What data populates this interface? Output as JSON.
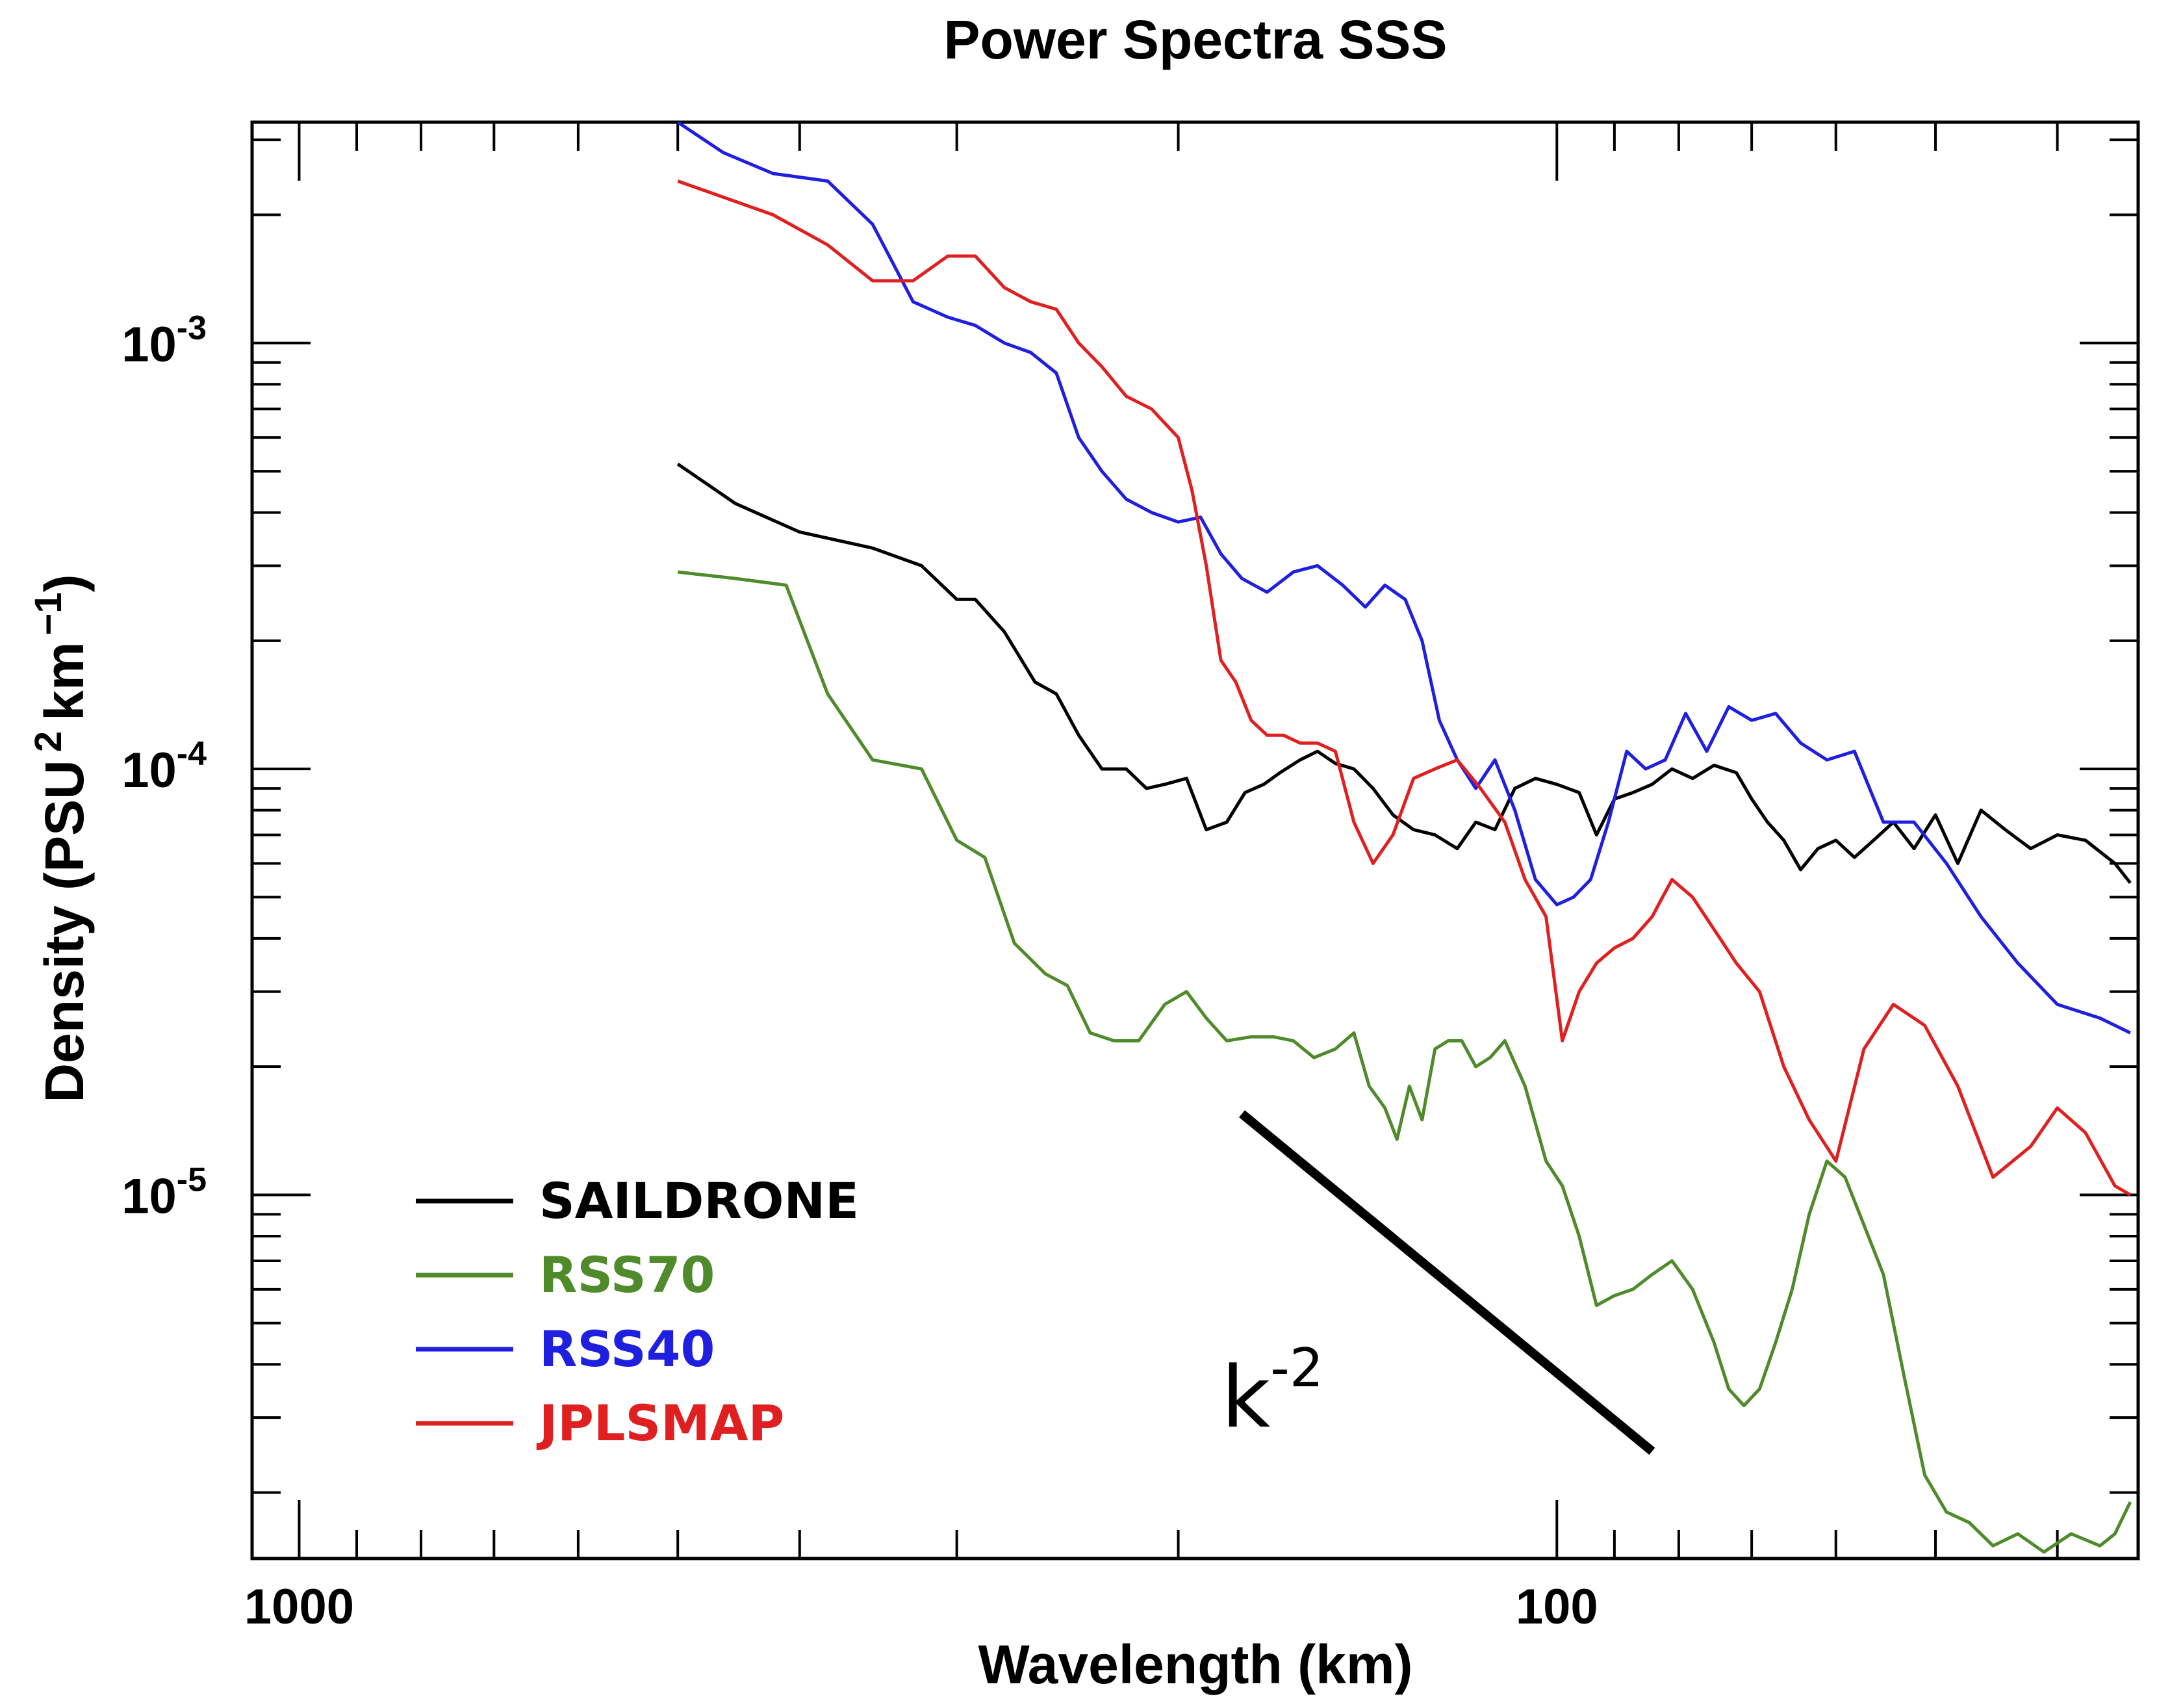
{
  "chart_data": {
    "type": "line",
    "title": "Power Spectra SSS",
    "xlabel": "Wavelength (km)",
    "ylabel": "Density (PSU",
    "ylabel_unit_a": "2",
    "ylabel_unit_b": "km",
    "ylabel_unit_c": "−1",
    "ylabel_close": ")",
    "x_scale": "log",
    "x_reversed": true,
    "y_scale": "log",
    "xlim": [
      1090,
      34.5
    ],
    "ylim": [
      1.4e-06,
      0.0033
    ],
    "x_ticks": [
      {
        "value": 1000,
        "label": "1000"
      },
      {
        "value": 100,
        "label": "100"
      }
    ],
    "y_ticks": [
      {
        "value": 1e-05,
        "base": "10",
        "exp": "-5"
      },
      {
        "value": 0.0001,
        "base": "10",
        "exp": "-4"
      },
      {
        "value": 0.001,
        "base": "10",
        "exp": "-3"
      }
    ],
    "legend_position": "bottom-left",
    "series": [
      {
        "name": "SAILDRONE",
        "color": "#000000",
        "x": [
          500,
          450,
          400,
          350,
          320,
          300,
          290,
          275,
          260,
          250,
          240,
          230,
          220,
          212,
          205,
          197,
          190,
          183,
          177,
          171,
          166,
          160,
          155,
          150,
          145,
          140,
          135,
          130,
          125,
          120,
          116,
          112,
          108,
          104,
          100,
          96,
          93,
          90,
          87,
          84,
          81,
          78,
          75,
          72,
          70,
          68,
          66,
          64,
          62,
          60,
          58,
          56,
          54,
          52,
          50,
          48,
          46,
          44,
          42,
          40,
          38,
          36,
          35
        ],
        "y": [
          0.00052,
          0.00042,
          0.00036,
          0.00033,
          0.0003,
          0.00025,
          0.00025,
          0.00021,
          0.00016,
          0.00015,
          0.00012,
          0.0001,
          0.0001,
          9e-05,
          9.2e-05,
          9.5e-05,
          7.2e-05,
          7.5e-05,
          8.8e-05,
          9.2e-05,
          9.8e-05,
          0.000105,
          0.00011,
          0.000103,
          0.0001,
          9e-05,
          7.8e-05,
          7.2e-05,
          7e-05,
          6.5e-05,
          7.5e-05,
          7.2e-05,
          9e-05,
          9.5e-05,
          9.2e-05,
          8.8e-05,
          7e-05,
          8.5e-05,
          8.8e-05,
          9.2e-05,
          0.0001,
          9.5e-05,
          0.000102,
          9.8e-05,
          8.5e-05,
          7.5e-05,
          6.8e-05,
          5.8e-05,
          6.5e-05,
          6.8e-05,
          6.2e-05,
          6.8e-05,
          7.5e-05,
          6.5e-05,
          7.8e-05,
          6e-05,
          8e-05,
          7.2e-05,
          6.5e-05,
          7e-05,
          6.8e-05,
          6e-05,
          5.4e-05
        ]
      },
      {
        "name": "RSS70",
        "color": "#4f8a2b",
        "x": [
          500,
          450,
          410,
          380,
          350,
          320,
          300,
          285,
          270,
          255,
          245,
          235,
          225,
          215,
          205,
          197,
          190,
          183,
          175,
          168,
          162,
          156,
          150,
          145,
          141,
          137,
          134,
          131,
          128,
          125,
          122,
          119,
          116,
          113,
          110,
          106,
          102,
          99,
          96,
          93,
          90,
          87,
          84,
          81,
          78,
          75,
          73,
          71,
          69,
          67,
          65,
          63,
          61,
          59,
          57,
          55,
          53,
          51,
          49,
          47,
          45,
          43,
          41,
          39,
          37,
          36,
          35
        ],
        "y": [
          0.00029,
          0.00028,
          0.00027,
          0.00015,
          0.000105,
          0.0001,
          6.8e-05,
          6.2e-05,
          3.9e-05,
          3.3e-05,
          3.1e-05,
          2.4e-05,
          2.3e-05,
          2.3e-05,
          2.8e-05,
          3e-05,
          2.6e-05,
          2.3e-05,
          2.35e-05,
          2.35e-05,
          2.3e-05,
          2.1e-05,
          2.2e-05,
          2.4e-05,
          1.8e-05,
          1.6e-05,
          1.35e-05,
          1.8e-05,
          1.5e-05,
          2.2e-05,
          2.3e-05,
          2.3e-05,
          2e-05,
          2.1e-05,
          2.3e-05,
          1.8e-05,
          1.2e-05,
          1.05e-05,
          8e-06,
          5.5e-06,
          5.8e-06,
          6e-06,
          6.5e-06,
          7e-06,
          6e-06,
          4.5e-06,
          3.5e-06,
          3.2e-06,
          3.5e-06,
          4.5e-06,
          6e-06,
          9e-06,
          1.2e-05,
          1.1e-05,
          8.5e-06,
          6.5e-06,
          3.8e-06,
          2.2e-06,
          1.8e-06,
          1.7e-06,
          1.5e-06,
          1.6e-06,
          1.45e-06,
          1.6e-06,
          1.5e-06,
          1.6e-06,
          1.9e-06
        ]
      },
      {
        "name": "RSS40",
        "color": "#1f1fe0",
        "x": [
          500,
          460,
          420,
          380,
          350,
          325,
          305,
          290,
          275,
          262,
          250,
          240,
          230,
          220,
          210,
          200,
          192,
          185,
          178,
          170,
          162,
          155,
          148,
          142,
          137,
          132,
          128,
          124,
          120,
          116,
          112,
          108,
          104,
          100,
          97,
          94,
          91,
          88,
          85,
          82,
          79,
          76,
          73,
          70,
          67,
          64,
          61,
          58,
          55,
          52,
          49,
          46,
          43,
          40,
          37,
          35
        ],
        "y": [
          0.0033,
          0.0028,
          0.0025,
          0.0024,
          0.0019,
          0.00125,
          0.00115,
          0.0011,
          0.001,
          0.00095,
          0.00085,
          0.0006,
          0.0005,
          0.00043,
          0.0004,
          0.00038,
          0.00039,
          0.00032,
          0.00028,
          0.00026,
          0.00029,
          0.0003,
          0.00027,
          0.00024,
          0.00027,
          0.00025,
          0.0002,
          0.00013,
          0.000105,
          9e-05,
          0.000105,
          8e-05,
          5.5e-05,
          4.8e-05,
          5e-05,
          5.5e-05,
          7.5e-05,
          0.00011,
          0.0001,
          0.000105,
          0.000135,
          0.00011,
          0.00014,
          0.00013,
          0.000135,
          0.000115,
          0.000105,
          0.00011,
          7.5e-05,
          7.5e-05,
          6e-05,
          4.5e-05,
          3.5e-05,
          2.8e-05,
          2.6e-05,
          2.4e-05
        ]
      },
      {
        "name": "JPLSMAP",
        "color": "#e02020",
        "x": [
          500,
          460,
          420,
          380,
          350,
          325,
          305,
          290,
          275,
          262,
          250,
          240,
          230,
          220,
          210,
          200,
          195,
          190,
          185,
          180,
          175,
          170,
          165,
          160,
          155,
          150,
          145,
          140,
          135,
          130,
          125,
          120,
          115,
          110,
          106,
          102,
          99,
          96,
          93,
          90,
          87,
          84,
          81,
          78,
          75,
          72,
          69,
          66,
          63,
          60,
          57,
          54,
          51,
          48,
          45,
          42,
          40,
          38,
          36,
          35
        ],
        "y": [
          0.0024,
          0.0022,
          0.002,
          0.0017,
          0.0014,
          0.0014,
          0.0016,
          0.0016,
          0.00135,
          0.00125,
          0.0012,
          0.001,
          0.00088,
          0.00075,
          0.0007,
          0.0006,
          0.00045,
          0.0003,
          0.00018,
          0.00016,
          0.00013,
          0.00012,
          0.00012,
          0.000115,
          0.000115,
          0.00011,
          7.5e-05,
          6e-05,
          7e-05,
          9.5e-05,
          0.0001,
          0.000105,
          9e-05,
          7.5e-05,
          5.5e-05,
          4.5e-05,
          2.3e-05,
          3e-05,
          3.5e-05,
          3.8e-05,
          4e-05,
          4.5e-05,
          5.5e-05,
          5e-05,
          4.2e-05,
          3.5e-05,
          3e-05,
          2e-05,
          1.5e-05,
          1.2e-05,
          2.2e-05,
          2.8e-05,
          2.5e-05,
          1.8e-05,
          1.1e-05,
          1.3e-05,
          1.6e-05,
          1.4e-05,
          1.05e-05,
          1e-05
        ]
      }
    ],
    "reference_line": {
      "label_base": "k",
      "label_exp": "-2",
      "x": [
        178,
        84
      ],
      "y": [
        1.55e-05,
        2.5e-06
      ]
    }
  }
}
